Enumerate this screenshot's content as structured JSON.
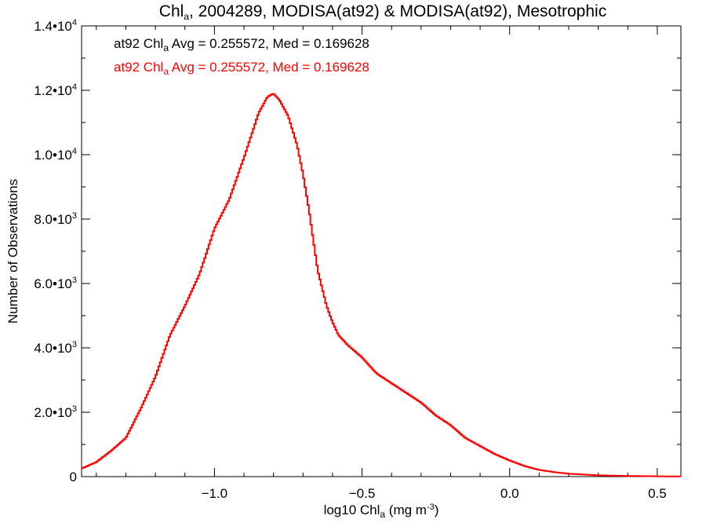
{
  "chart_data": {
    "type": "line",
    "step": true,
    "title": {
      "prefix": "Chl",
      "sub": "a",
      "suffix": ", 2004289, MODISA(at92) & MODISA(at92), Mesotrophic"
    },
    "xlabel": {
      "prefix": "log10 Chl",
      "sub": "a",
      "unit_pre": " (mg m",
      "unit_sup": "-3",
      "unit_post": ")"
    },
    "ylabel": "Number of Observations",
    "xlim": [
      -1.45,
      0.58
    ],
    "ylim": [
      0,
      14000
    ],
    "grid": false,
    "x_ticks": [
      {
        "value": -1.0,
        "label": "−1.0"
      },
      {
        "value": -0.5,
        "label": "−0.5"
      },
      {
        "value": 0.0,
        "label": "0.0"
      },
      {
        "value": 0.5,
        "label": "0.5"
      }
    ],
    "y_ticks": [
      {
        "value": 0,
        "label": "0",
        "sup": ""
      },
      {
        "value": 2000,
        "label": "2.0•10",
        "sup": "3"
      },
      {
        "value": 4000,
        "label": "4.0•10",
        "sup": "3"
      },
      {
        "value": 6000,
        "label": "6.0•10",
        "sup": "3"
      },
      {
        "value": 8000,
        "label": "8.0•10",
        "sup": "3"
      },
      {
        "value": 10000,
        "label": "1.0•10",
        "sup": "4"
      },
      {
        "value": 12000,
        "label": "1.2•10",
        "sup": "4"
      },
      {
        "value": 14000,
        "label": "1.4•10",
        "sup": "4"
      }
    ],
    "annotations": [
      {
        "prefix": "at92 Chl",
        "sub": "a",
        "suffix": " Avg = 0.255572, Med = 0.169628",
        "color": "#000000"
      },
      {
        "prefix": "at92 Chl",
        "sub": "a",
        "suffix": " Avg = 0.255572, Med = 0.169628",
        "color": "#ff0000"
      }
    ],
    "series": [
      {
        "color": "#ff0000",
        "x": [
          -1.45,
          -1.4,
          -1.35,
          -1.3,
          -1.25,
          -1.2,
          -1.15,
          -1.1,
          -1.05,
          -1.0,
          -0.95,
          -0.9,
          -0.85,
          -0.82,
          -0.8,
          -0.78,
          -0.75,
          -0.72,
          -0.7,
          -0.68,
          -0.65,
          -0.62,
          -0.6,
          -0.58,
          -0.55,
          -0.5,
          -0.45,
          -0.4,
          -0.35,
          -0.3,
          -0.25,
          -0.2,
          -0.15,
          -0.1,
          -0.05,
          0.0,
          0.05,
          0.1,
          0.15,
          0.2,
          0.3,
          0.4,
          0.5,
          0.58
        ],
        "y": [
          250,
          450,
          800,
          1200,
          2100,
          3100,
          4400,
          5300,
          6300,
          7700,
          8600,
          9900,
          11300,
          11800,
          11900,
          11700,
          11200,
          10300,
          9400,
          8300,
          6400,
          5300,
          4800,
          4400,
          4100,
          3700,
          3200,
          2900,
          2600,
          2300,
          1900,
          1600,
          1200,
          950,
          700,
          500,
          330,
          210,
          140,
          90,
          40,
          20,
          10,
          5
        ]
      }
    ]
  }
}
